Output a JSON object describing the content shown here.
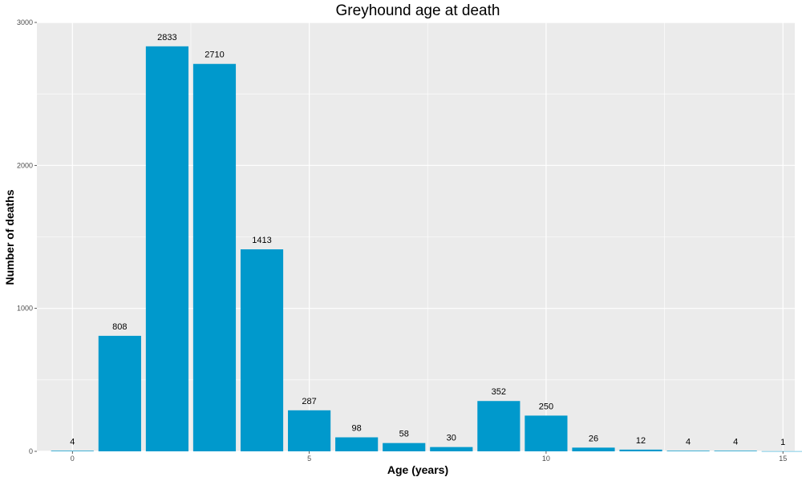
{
  "chart_data": {
    "type": "bar",
    "title": "Greyhound age at death",
    "xlabel": "Age (years)",
    "ylabel": "Number of deaths",
    "x": [
      0,
      1,
      2,
      3,
      4,
      5,
      6,
      7,
      8,
      9,
      10,
      11,
      12,
      13,
      14,
      15
    ],
    "values": [
      4,
      808,
      2833,
      2710,
      1413,
      287,
      98,
      58,
      30,
      352,
      250,
      26,
      12,
      4,
      4,
      1
    ],
    "xlim": [
      -0.75,
      15.25
    ],
    "ylim": [
      0,
      3000
    ],
    "x_ticks": [
      0,
      5,
      10,
      15
    ],
    "y_ticks": [
      0,
      1000,
      2000,
      3000
    ],
    "bar_color": "#0099cc",
    "panel_background": "#ebebeb",
    "grid_color": "#ffffff",
    "grid": true,
    "legend": "none"
  }
}
